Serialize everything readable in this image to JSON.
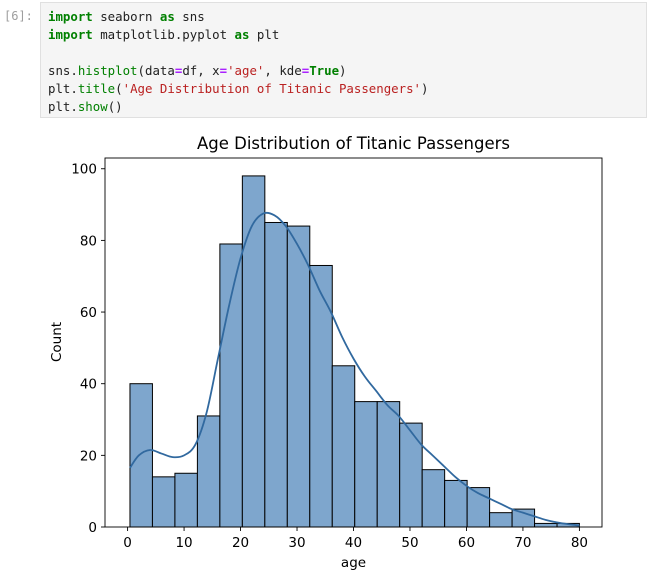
{
  "cell": {
    "prompt": "[6]:",
    "code_lines": [
      [
        {
          "t": "import",
          "c": "kw"
        },
        {
          "t": " seaborn ",
          "c": ""
        },
        {
          "t": "as",
          "c": "kw"
        },
        {
          "t": " sns",
          "c": ""
        }
      ],
      [
        {
          "t": "import",
          "c": "kw"
        },
        {
          "t": " matplotlib.pyplot ",
          "c": ""
        },
        {
          "t": "as",
          "c": "kw"
        },
        {
          "t": " plt",
          "c": ""
        }
      ],
      [],
      [
        {
          "t": "sns.",
          "c": ""
        },
        {
          "t": "histplot",
          "c": "fn"
        },
        {
          "t": "(data",
          "c": ""
        },
        {
          "t": "=",
          "c": "op"
        },
        {
          "t": "df, x",
          "c": ""
        },
        {
          "t": "=",
          "c": "op"
        },
        {
          "t": "'age'",
          "c": "str"
        },
        {
          "t": ", kde",
          "c": ""
        },
        {
          "t": "=",
          "c": "op"
        },
        {
          "t": "True",
          "c": "kw"
        },
        {
          "t": ")",
          "c": ""
        }
      ],
      [
        {
          "t": "plt.",
          "c": ""
        },
        {
          "t": "title",
          "c": "fn"
        },
        {
          "t": "(",
          "c": ""
        },
        {
          "t": "'Age Distribution of Titanic Passengers'",
          "c": "str"
        },
        {
          "t": ")",
          "c": ""
        }
      ],
      [
        {
          "t": "plt.",
          "c": ""
        },
        {
          "t": "show",
          "c": "fn"
        },
        {
          "t": "()",
          "c": ""
        }
      ]
    ]
  },
  "chart_data": {
    "type": "bar",
    "title": "Age Distribution of Titanic Passengers",
    "xlabel": "age",
    "ylabel": "Count",
    "xlim": [
      -4,
      84
    ],
    "ylim": [
      0,
      103
    ],
    "xticks": [
      0,
      10,
      20,
      30,
      40,
      50,
      60,
      70,
      80
    ],
    "yticks": [
      0,
      20,
      40,
      60,
      80,
      100
    ],
    "bin_edges": [
      0.42,
      4.4,
      8.38,
      12.36,
      16.34,
      20.32,
      24.3,
      28.28,
      32.26,
      36.24,
      40.22,
      44.2,
      48.18,
      52.16,
      56.14,
      60.12,
      64.1,
      68.08,
      72.06,
      76.04,
      80.0
    ],
    "counts": [
      40,
      14,
      15,
      31,
      79,
      98,
      85,
      84,
      73,
      45,
      35,
      35,
      29,
      16,
      13,
      11,
      4,
      5,
      1,
      1
    ],
    "kde": {
      "x": [
        0.42,
        2,
        4,
        6,
        8,
        10,
        12,
        14,
        16,
        18,
        20,
        22,
        24,
        26,
        28,
        30,
        32,
        34,
        36,
        38,
        40,
        42,
        44,
        46,
        48,
        50,
        52,
        54,
        56,
        58,
        60,
        62,
        64,
        66,
        68,
        70,
        72,
        74,
        76,
        78,
        80
      ],
      "y": [
        16.5,
        20,
        21.5,
        20.5,
        19.5,
        20,
        23,
        32,
        47,
        62,
        75,
        84,
        87.5,
        87,
        84,
        79,
        73,
        66,
        60,
        53,
        47,
        42,
        38,
        34,
        31,
        27,
        23,
        20,
        17,
        14,
        11.5,
        9.5,
        8,
        6.5,
        5,
        4,
        3,
        2,
        1.3,
        0.8,
        0.4
      ]
    },
    "colors": {
      "bar_fill": "#7ea6cd",
      "bar_edge": "#000000",
      "kde_line": "#31699f"
    },
    "grid": false
  }
}
